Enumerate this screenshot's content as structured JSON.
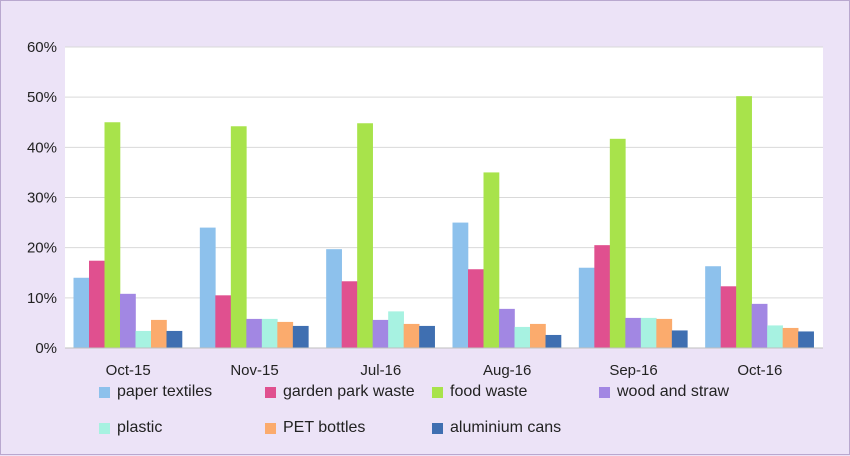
{
  "chart_data": {
    "type": "bar",
    "title": "",
    "xlabel": "",
    "ylabel": "",
    "ylim": [
      0,
      60
    ],
    "yticks": [
      "0%",
      "10%",
      "20%",
      "30%",
      "40%",
      "50%",
      "60%"
    ],
    "grid": true,
    "legend_position": "bottom",
    "categories": [
      "Oct-15",
      "Nov-15",
      "Jul-16",
      "Aug-16",
      "Sep-16",
      "Oct-16"
    ],
    "series": [
      {
        "name": "paper textiles",
        "color": "#8dc1ec",
        "values": [
          14,
          24,
          19.7,
          25,
          16,
          16.3
        ]
      },
      {
        "name": "garden park waste",
        "color": "#e0508f",
        "values": [
          17.4,
          10.5,
          13.3,
          15.7,
          20.5,
          12.3
        ]
      },
      {
        "name": "food waste",
        "color": "#a8e34b",
        "values": [
          45,
          44.2,
          44.8,
          35,
          41.7,
          50.2
        ]
      },
      {
        "name": "wood and straw",
        "color": "#a287e3",
        "values": [
          10.8,
          5.8,
          5.6,
          7.8,
          6,
          8.8
        ]
      },
      {
        "name": "plastic",
        "color": "#a7f2e1",
        "values": [
          3.4,
          5.8,
          7.3,
          4.2,
          6,
          4.5
        ]
      },
      {
        "name": "PET bottles",
        "color": "#fbab6d",
        "values": [
          5.6,
          5.2,
          4.8,
          4.8,
          5.8,
          4
        ]
      },
      {
        "name": "aluminium cans",
        "color": "#3f6fb1",
        "values": [
          3.4,
          4.4,
          4.4,
          2.6,
          3.5,
          3.3
        ]
      }
    ]
  }
}
